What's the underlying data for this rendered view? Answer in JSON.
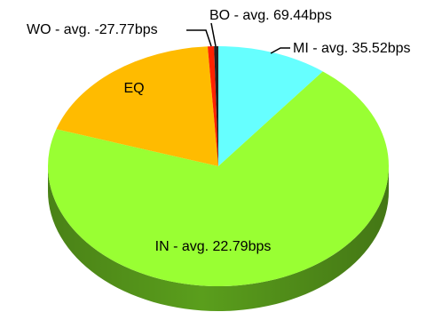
{
  "chart_data": {
    "type": "pie",
    "style": "3d",
    "slices": [
      {
        "label": "MI",
        "text": "MI - avg. 35.52bps",
        "value": 10.5,
        "color": "#66ffff",
        "side_color": "#3fc9d1"
      },
      {
        "label": "IN",
        "text": "IN - avg. 22.79bps",
        "value": 69.5,
        "color": "#99ff33",
        "side_color": "#5a9e1c"
      },
      {
        "label": "EQ",
        "text": "EQ",
        "value": 19.0,
        "color": "#ffbb00",
        "side_color": "#c88a00"
      },
      {
        "label": "WO",
        "text": "WO - avg. -27.77bps",
        "value": 0.6,
        "color": "#ff2200",
        "side_color": "#b01800"
      },
      {
        "label": "BO",
        "text": "BO - avg. 69.44bps",
        "value": 0.4,
        "color": "#222222",
        "side_color": "#111111"
      }
    ]
  }
}
